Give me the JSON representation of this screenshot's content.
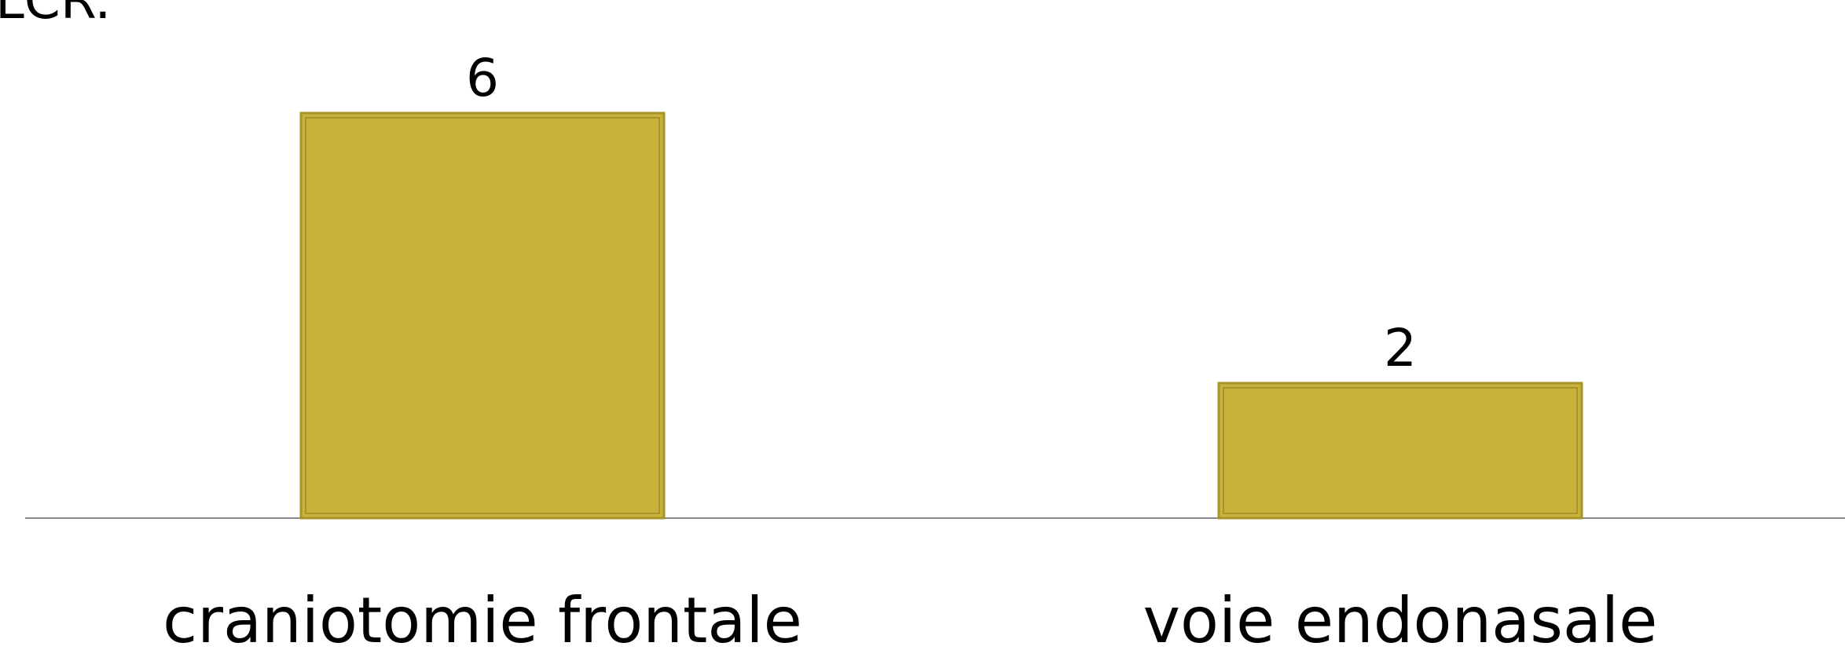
{
  "title_fragment": "LCR.",
  "chart_data": {
    "type": "bar",
    "categories": [
      "craniotomie frontale",
      "voie endonasale"
    ],
    "values": [
      6,
      2
    ],
    "data_labels": [
      "6",
      "2"
    ],
    "ylim": [
      0,
      6
    ],
    "grid": false,
    "legend": "none",
    "colors": {
      "bar": "#C8B23B",
      "bar_edge": "#A8932B",
      "axis": "#888888"
    }
  }
}
